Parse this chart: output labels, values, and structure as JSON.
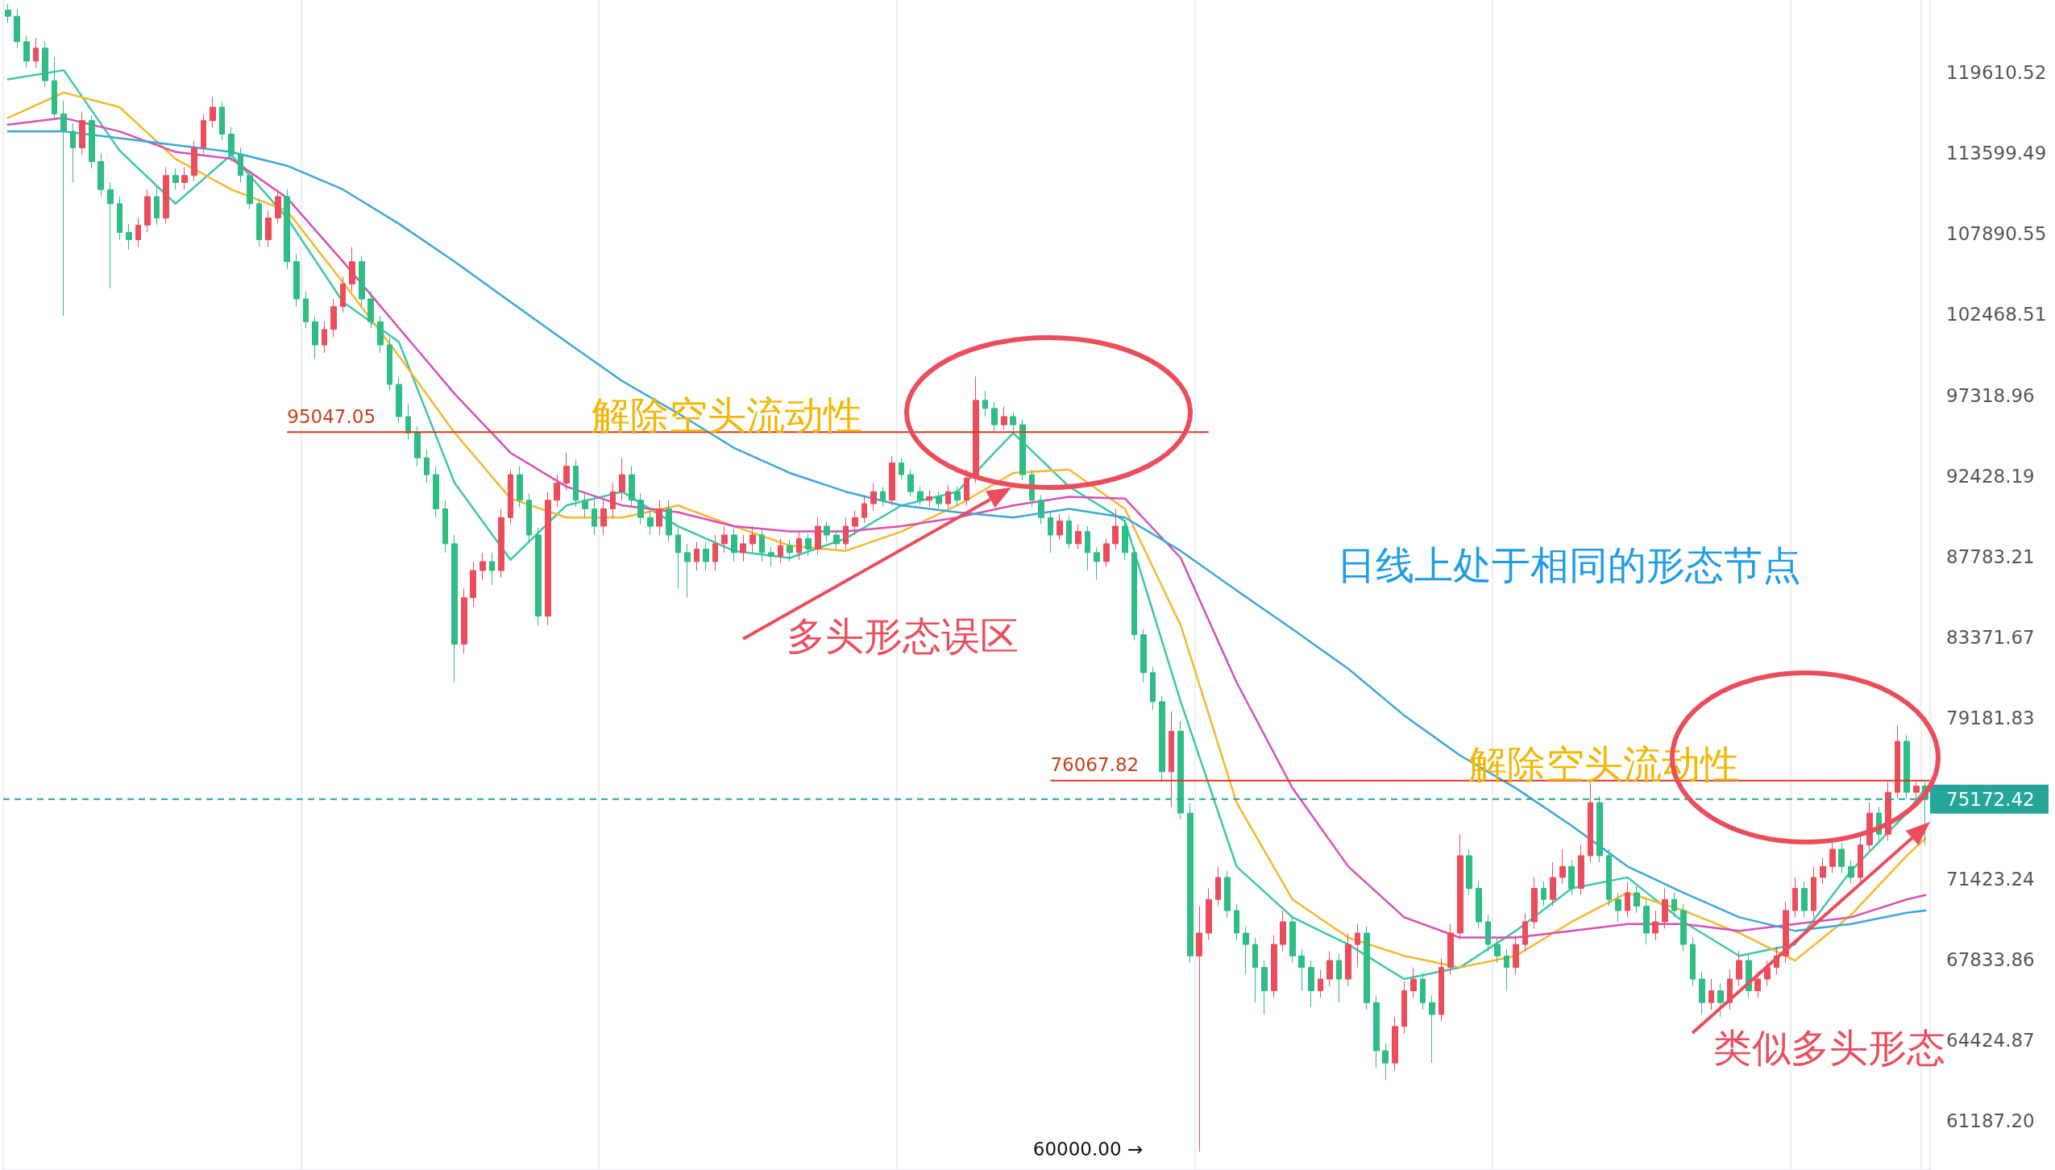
{
  "chart_data": {
    "type": "candlestick",
    "categories": [
      null,
      null,
      null,
      null,
      null,
      null,
      null,
      null,
      null,
      null,
      null,
      null,
      null,
      null,
      null,
      null,
      null,
      null,
      null,
      null,
      null,
      null,
      null,
      null,
      null,
      null,
      null,
      null,
      null,
      null,
      null,
      null,
      null,
      null,
      null,
      null,
      null,
      null,
      null,
      null,
      null,
      null,
      null,
      null,
      null,
      null,
      null,
      null,
      null,
      null,
      null,
      null,
      null,
      null,
      null,
      null,
      null,
      null,
      null,
      null,
      null,
      null,
      null,
      null,
      null,
      null,
      null,
      null,
      null,
      null,
      null,
      null,
      null,
      null,
      null,
      null,
      null,
      null,
      null,
      null,
      null,
      null,
      null,
      null,
      null,
      null,
      null,
      null,
      null,
      null,
      null,
      null,
      null,
      null,
      null,
      null,
      null,
      null,
      null,
      null,
      null,
      null,
      null,
      null,
      null,
      null,
      null,
      null,
      null,
      null,
      null,
      null,
      null,
      null,
      null,
      null,
      null,
      null,
      null,
      null,
      null,
      null,
      null,
      null,
      null,
      null,
      null,
      null,
      null,
      null,
      null,
      null,
      null,
      null,
      null,
      null,
      null,
      null,
      null,
      null,
      null,
      null,
      null,
      null,
      null,
      null,
      null,
      null,
      null,
      null,
      null,
      null,
      null,
      null,
      null,
      null,
      null,
      null,
      null,
      null,
      null,
      null,
      null,
      null,
      null,
      null,
      null,
      null,
      null,
      null,
      null,
      null,
      null,
      null,
      null,
      null,
      null,
      null,
      null,
      null,
      null,
      null,
      null,
      null,
      null,
      null,
      null,
      null,
      null,
      null,
      null,
      null,
      null,
      null,
      null,
      null,
      null,
      null,
      null,
      null,
      null,
      null,
      null,
      null,
      null,
      null,
      null
    ],
    "ohlc": [
      [
        124500,
        125000,
        123500,
        124000
      ],
      [
        124000,
        124600,
        121500,
        122000
      ],
      [
        122000,
        122500,
        120000,
        120500
      ],
      [
        120500,
        122300,
        120000,
        121500
      ],
      [
        121500,
        122000,
        118500,
        119000
      ],
      [
        119000,
        120800,
        116000,
        116500
      ],
      [
        116500,
        117500,
        102400,
        115200
      ],
      [
        115200,
        115800,
        111500,
        114000
      ],
      [
        114000,
        116600,
        113500,
        116000
      ],
      [
        116000,
        116400,
        112500,
        113000
      ],
      [
        113000,
        113600,
        110500,
        111000
      ],
      [
        111000,
        111500,
        104200,
        110000
      ],
      [
        110000,
        110500,
        107500,
        108000
      ],
      [
        108000,
        108600,
        106800,
        107500
      ],
      [
        107500,
        109000,
        107000,
        108500
      ],
      [
        108500,
        111000,
        108000,
        110500
      ],
      [
        110500,
        111200,
        108500,
        109000
      ],
      [
        109000,
        112600,
        108600,
        112000
      ],
      [
        112000,
        112500,
        111000,
        111500
      ],
      [
        111500,
        112600,
        111000,
        112000
      ],
      [
        112000,
        114500,
        111600,
        114000
      ],
      [
        114000,
        116500,
        113600,
        116000
      ],
      [
        116000,
        117800,
        115500,
        117000
      ],
      [
        117000,
        117400,
        114600,
        115000
      ],
      [
        115000,
        115500,
        113000,
        113500
      ],
      [
        113500,
        114000,
        111500,
        112000
      ],
      [
        112000,
        112400,
        109600,
        110000
      ],
      [
        110000,
        110300,
        107000,
        107500
      ],
      [
        107500,
        109500,
        107000,
        109000
      ],
      [
        109000,
        111000,
        108600,
        110500
      ],
      [
        110500,
        111000,
        105500,
        106000
      ],
      [
        106000,
        106500,
        103000,
        103500
      ],
      [
        103500,
        104000,
        101600,
        102000
      ],
      [
        102000,
        102400,
        99600,
        100500
      ],
      [
        100500,
        102000,
        100000,
        101500
      ],
      [
        101500,
        103500,
        101000,
        103000
      ],
      [
        103000,
        105000,
        102600,
        104500
      ],
      [
        104500,
        107000,
        104000,
        106000
      ],
      [
        106000,
        106400,
        103000,
        103500
      ],
      [
        103500,
        104000,
        101600,
        102000
      ],
      [
        102000,
        102400,
        100000,
        100500
      ],
      [
        100500,
        101000,
        97600,
        98000
      ],
      [
        98000,
        98400,
        95600,
        96000
      ],
      [
        96000,
        96800,
        94600,
        95000
      ],
      [
        95000,
        95400,
        93000,
        93500
      ],
      [
        93500,
        94000,
        92000,
        92500
      ],
      [
        92500,
        93000,
        90000,
        90500
      ],
      [
        90500,
        91000,
        88000,
        88500
      ],
      [
        88500,
        89000,
        81000,
        83000
      ],
      [
        83000,
        86000,
        82500,
        85500
      ],
      [
        85500,
        87500,
        85000,
        87000
      ],
      [
        87000,
        88000,
        86500,
        87500
      ],
      [
        87500,
        88000,
        86200,
        87000
      ],
      [
        87000,
        90500,
        86600,
        90000
      ],
      [
        90000,
        92800,
        89600,
        92500
      ],
      [
        92500,
        93000,
        90600,
        91000
      ],
      [
        91000,
        91400,
        88600,
        89000
      ],
      [
        89000,
        89400,
        84000,
        84500
      ],
      [
        84500,
        91500,
        84000,
        91000
      ],
      [
        91000,
        92500,
        90600,
        92000
      ],
      [
        92000,
        93800,
        91600,
        93000
      ],
      [
        93000,
        93400,
        90600,
        91000
      ],
      [
        91000,
        91400,
        90000,
        90500
      ],
      [
        90500,
        91000,
        89000,
        89500
      ],
      [
        89500,
        91000,
        89000,
        90500
      ],
      [
        90500,
        92000,
        90000,
        91500
      ],
      [
        91500,
        93500,
        91000,
        92500
      ],
      [
        92500,
        93000,
        90600,
        91000
      ],
      [
        91000,
        91400,
        89600,
        90000
      ],
      [
        90000,
        90400,
        89000,
        89500
      ],
      [
        89500,
        91000,
        89000,
        90500
      ],
      [
        90500,
        91000,
        88600,
        89000
      ],
      [
        89000,
        89400,
        86000,
        88000
      ],
      [
        88000,
        88500,
        85500,
        87500
      ],
      [
        87500,
        88600,
        87000,
        88200
      ],
      [
        88200,
        88600,
        87000,
        87500
      ],
      [
        87500,
        89000,
        87000,
        88500
      ],
      [
        88500,
        89500,
        88000,
        89000
      ],
      [
        89000,
        89400,
        87500,
        88000
      ],
      [
        88000,
        89000,
        87500,
        88500
      ],
      [
        88500,
        89500,
        88000,
        89000
      ],
      [
        89000,
        89300,
        87500,
        88000
      ],
      [
        88000,
        88300,
        87200,
        87800
      ],
      [
        87800,
        88800,
        87400,
        88400
      ],
      [
        88400,
        88700,
        87500,
        88000
      ],
      [
        88000,
        89200,
        87600,
        88800
      ],
      [
        88800,
        89100,
        87800,
        88200
      ],
      [
        88200,
        90000,
        87900,
        89500
      ],
      [
        89500,
        89800,
        88600,
        89000
      ],
      [
        89000,
        89300,
        88200,
        88500
      ],
      [
        88500,
        90000,
        88200,
        89500
      ],
      [
        89500,
        90400,
        89000,
        90000
      ],
      [
        90000,
        91200,
        89700,
        90800
      ],
      [
        90800,
        92000,
        90400,
        91500
      ],
      [
        91500,
        91800,
        90600,
        91000
      ],
      [
        91000,
        93600,
        90700,
        93200
      ],
      [
        93200,
        93500,
        92200,
        92500
      ],
      [
        92500,
        92800,
        91200,
        91500
      ],
      [
        91500,
        91800,
        90700,
        91000
      ],
      [
        91000,
        91600,
        90600,
        91200
      ],
      [
        91200,
        91500,
        90500,
        90800
      ],
      [
        90800,
        91900,
        90500,
        91500
      ],
      [
        91500,
        91800,
        90700,
        91000
      ],
      [
        91000,
        92800,
        90700,
        92300
      ],
      [
        92300,
        98500,
        92000,
        97000
      ],
      [
        97000,
        97600,
        96000,
        96500
      ],
      [
        96500,
        96900,
        95100,
        95500
      ],
      [
        95500,
        96600,
        95200,
        96000
      ],
      [
        96000,
        96300,
        95100,
        95500
      ],
      [
        95500,
        95800,
        92200,
        92500
      ],
      [
        92500,
        92800,
        90600,
        91000
      ],
      [
        91000,
        91300,
        89600,
        90000
      ],
      [
        90000,
        90300,
        88000,
        89000
      ],
      [
        89000,
        90200,
        88700,
        89800
      ],
      [
        89800,
        90100,
        88200,
        88500
      ],
      [
        88500,
        89600,
        88200,
        89200
      ],
      [
        89200,
        89500,
        87000,
        88000
      ],
      [
        88000,
        88300,
        86500,
        87500
      ],
      [
        87500,
        88800,
        87200,
        88500
      ],
      [
        88500,
        90500,
        88200,
        89500
      ],
      [
        89500,
        89800,
        87600,
        88000
      ],
      [
        88000,
        88300,
        83200,
        83500
      ],
      [
        83500,
        83800,
        81000,
        81500
      ],
      [
        81500,
        81800,
        79600,
        80000
      ],
      [
        80000,
        80300,
        76000,
        76500
      ],
      [
        76500,
        79500,
        74800,
        78500
      ],
      [
        78500,
        79000,
        74200,
        74500
      ],
      [
        74500,
        75000,
        67700,
        68000
      ],
      [
        68000,
        70200,
        60000,
        69000
      ],
      [
        69000,
        71000,
        68700,
        70500
      ],
      [
        70500,
        72000,
        70200,
        71500
      ],
      [
        71500,
        71800,
        69700,
        70000
      ],
      [
        70000,
        70300,
        68700,
        69000
      ],
      [
        69000,
        69300,
        67200,
        68500
      ],
      [
        68500,
        68800,
        66000,
        67500
      ],
      [
        67500,
        67800,
        65500,
        66500
      ],
      [
        66500,
        68900,
        66200,
        68500
      ],
      [
        68500,
        70000,
        68200,
        69500
      ],
      [
        69500,
        69800,
        67700,
        68000
      ],
      [
        68000,
        68300,
        66500,
        67500
      ],
      [
        67500,
        67800,
        65800,
        66500
      ],
      [
        66500,
        67400,
        66200,
        67000
      ],
      [
        67000,
        68200,
        66700,
        67800
      ],
      [
        67800,
        68100,
        66000,
        67000
      ],
      [
        67000,
        69000,
        66700,
        68500
      ],
      [
        68500,
        69400,
        67500,
        69000
      ],
      [
        69000,
        69300,
        65700,
        66000
      ],
      [
        66000,
        66300,
        63300,
        64000
      ],
      [
        64000,
        64300,
        62800,
        63500
      ],
      [
        63500,
        65400,
        63200,
        65000
      ],
      [
        65000,
        66900,
        64700,
        66500
      ],
      [
        66500,
        67500,
        66200,
        67000
      ],
      [
        67000,
        67300,
        65700,
        66000
      ],
      [
        66000,
        66300,
        63500,
        65500
      ],
      [
        65500,
        67900,
        65200,
        67500
      ],
      [
        67500,
        69400,
        67200,
        69000
      ],
      [
        69000,
        73500,
        68700,
        72500
      ],
      [
        72500,
        72800,
        70700,
        71000
      ],
      [
        71000,
        71300,
        69200,
        69500
      ],
      [
        69500,
        69800,
        68200,
        68500
      ],
      [
        68500,
        68800,
        67700,
        68000
      ],
      [
        68000,
        68300,
        66500,
        67500
      ],
      [
        67500,
        68900,
        67200,
        68500
      ],
      [
        68500,
        69900,
        68200,
        69500
      ],
      [
        69500,
        71500,
        69200,
        71000
      ],
      [
        71000,
        71300,
        70200,
        70500
      ],
      [
        70500,
        72200,
        70200,
        71500
      ],
      [
        71500,
        72800,
        71200,
        72000
      ],
      [
        72000,
        72300,
        70700,
        71000
      ],
      [
        71000,
        73000,
        70700,
        72500
      ],
      [
        72500,
        76000,
        72200,
        75000
      ],
      [
        75000,
        75300,
        72200,
        72500
      ],
      [
        72500,
        72800,
        70200,
        70500
      ],
      [
        70500,
        70800,
        69500,
        70000
      ],
      [
        70000,
        71300,
        69700,
        70800
      ],
      [
        70800,
        71100,
        69900,
        70200
      ],
      [
        70200,
        70500,
        68500,
        69000
      ],
      [
        69000,
        70000,
        68700,
        69500
      ],
      [
        69500,
        71000,
        69200,
        70500
      ],
      [
        70500,
        70800,
        69700,
        70000
      ],
      [
        70000,
        70300,
        68200,
        68500
      ],
      [
        68500,
        68800,
        66700,
        67000
      ],
      [
        67000,
        67300,
        65500,
        66000
      ],
      [
        66000,
        67000,
        65700,
        66500
      ],
      [
        66500,
        66800,
        65400,
        66000
      ],
      [
        66000,
        67400,
        65700,
        67000
      ],
      [
        67000,
        68200,
        66700,
        67800
      ],
      [
        67800,
        68100,
        66200,
        66500
      ],
      [
        66500,
        67300,
        66200,
        67000
      ],
      [
        67000,
        67800,
        66700,
        67500
      ],
      [
        67500,
        68400,
        67200,
        68000
      ],
      [
        68000,
        70400,
        67700,
        70000
      ],
      [
        70000,
        71500,
        69700,
        71000
      ],
      [
        71000,
        71300,
        69700,
        70000
      ],
      [
        70000,
        72000,
        69700,
        71500
      ],
      [
        71500,
        72400,
        71200,
        72000
      ],
      [
        72000,
        73200,
        71700,
        72800
      ],
      [
        72800,
        73100,
        71700,
        72000
      ],
      [
        72000,
        72300,
        71200,
        71500
      ],
      [
        71500,
        73400,
        71200,
        73000
      ],
      [
        73000,
        75000,
        72700,
        74500
      ],
      [
        74500,
        74800,
        73200,
        73500
      ],
      [
        73500,
        76000,
        73200,
        75500
      ],
      [
        75500,
        78800,
        75200,
        78000
      ],
      [
        78000,
        78300,
        75200,
        75500
      ],
      [
        75500,
        76000,
        75200,
        75800
      ],
      [
        75800,
        76000,
        73000,
        75172.42
      ]
    ],
    "colors": [
      "#2ebd85",
      "#2ebd85",
      "#2ebd85",
      "#eb4d5c",
      "#2ebd85",
      "#2ebd85",
      "#2ebd85",
      "#2ebd85",
      "#eb4d5c",
      "#2ebd85",
      "#2ebd85",
      "#2ebd85",
      "#2ebd85",
      "#2ebd85",
      "#eb4d5c",
      "#eb4d5c",
      "#2ebd85",
      "#eb4d5c",
      "#2ebd85",
      "#eb4d5c",
      "#eb4d5c",
      "#eb4d5c",
      "#eb4d5c",
      "#2ebd85",
      "#2ebd85",
      "#2ebd85",
      "#2ebd85",
      "#2ebd85",
      "#eb4d5c",
      "#eb4d5c",
      "#2ebd85",
      "#2ebd85",
      "#2ebd85",
      "#2ebd85",
      "#eb4d5c",
      "#eb4d5c",
      "#eb4d5c",
      "#eb4d5c",
      "#2ebd85",
      "#2ebd85",
      "#2ebd85",
      "#2ebd85",
      "#2ebd85",
      "#2ebd85",
      "#2ebd85",
      "#2ebd85",
      "#2ebd85",
      "#2ebd85",
      "#2ebd85",
      "#eb4d5c",
      "#eb4d5c",
      "#eb4d5c",
      "#2ebd85",
      "#eb4d5c",
      "#eb4d5c",
      "#2ebd85",
      "#2ebd85",
      "#2ebd85",
      "#eb4d5c",
      "#eb4d5c",
      "#eb4d5c",
      "#2ebd85",
      "#2ebd85",
      "#2ebd85",
      "#eb4d5c",
      "#eb4d5c",
      "#eb4d5c",
      "#2ebd85",
      "#2ebd85",
      "#2ebd85",
      "#eb4d5c",
      "#2ebd85",
      "#2ebd85",
      "#2ebd85",
      "#eb4d5c",
      "#2ebd85",
      "#eb4d5c",
      "#eb4d5c",
      "#2ebd85",
      "#eb4d5c",
      "#eb4d5c",
      "#2ebd85",
      "#2ebd85",
      "#eb4d5c",
      "#2ebd85",
      "#eb4d5c",
      "#2ebd85",
      "#eb4d5c",
      "#2ebd85",
      "#2ebd85",
      "#eb4d5c",
      "#eb4d5c",
      "#eb4d5c",
      "#eb4d5c",
      "#2ebd85",
      "#eb4d5c",
      "#2ebd85",
      "#2ebd85",
      "#2ebd85",
      "#eb4d5c",
      "#2ebd85",
      "#eb4d5c",
      "#2ebd85",
      "#eb4d5c",
      "#eb4d5c",
      "#2ebd85",
      "#2ebd85",
      "#eb4d5c",
      "#2ebd85",
      "#2ebd85",
      "#2ebd85",
      "#2ebd85",
      "#2ebd85",
      "#eb4d5c",
      "#2ebd85",
      "#eb4d5c",
      "#2ebd85",
      "#2ebd85",
      "#eb4d5c",
      "#eb4d5c",
      "#2ebd85",
      "#2ebd85",
      "#2ebd85",
      "#2ebd85",
      "#2ebd85",
      "#eb4d5c",
      "#2ebd85",
      "#2ebd85",
      "#eb4d5c",
      "#eb4d5c",
      "#eb4d5c",
      "#2ebd85",
      "#2ebd85",
      "#2ebd85",
      "#2ebd85",
      "#2ebd85",
      "#eb4d5c",
      "#eb4d5c",
      "#2ebd85",
      "#2ebd85",
      "#2ebd85",
      "#eb4d5c",
      "#eb4d5c",
      "#2ebd85",
      "#eb4d5c",
      "#eb4d5c",
      "#2ebd85",
      "#2ebd85",
      "#2ebd85",
      "#eb4d5c",
      "#eb4d5c",
      "#eb4d5c",
      "#2ebd85",
      "#2ebd85",
      "#eb4d5c",
      "#eb4d5c",
      "#eb4d5c",
      "#2ebd85",
      "#2ebd85",
      "#2ebd85",
      "#2ebd85",
      "#2ebd85",
      "#eb4d5c",
      "#eb4d5c",
      "#eb4d5c",
      "#2ebd85",
      "#eb4d5c",
      "#eb4d5c",
      "#2ebd85",
      "#eb4d5c",
      "#eb4d5c",
      "#2ebd85",
      "#2ebd85",
      "#2ebd85",
      "#eb4d5c",
      "#2ebd85",
      "#2ebd85",
      "#eb4d5c",
      "#eb4d5c",
      "#2ebd85",
      "#2ebd85",
      "#2ebd85",
      "#2ebd85",
      "#eb4d5c",
      "#2ebd85",
      "#eb4d5c",
      "#eb4d5c",
      "#2ebd85",
      "#eb4d5c",
      "#eb4d5c",
      "#eb4d5c",
      "#eb4d5c",
      "#eb4d5c",
      "#2ebd85",
      "#eb4d5c",
      "#eb4d5c",
      "#eb4d5c",
      "#2ebd85",
      "#2ebd85",
      "#eb4d5c",
      "#eb4d5c",
      "#2ebd85",
      "#eb4d5c",
      "#eb4d5c",
      "#2ebd85",
      "#eb4d5c",
      "#2ebd85"
    ],
    "series": [
      {
        "type": "line",
        "color": "#3cc8a8",
        "values": [
          119100,
          null,
          null,
          null,
          null,
          null,
          119800,
          null,
          null,
          null,
          null,
          null,
          113800,
          null,
          null,
          null,
          null,
          null,
          110000,
          null,
          null,
          null,
          null,
          null,
          113500,
          null,
          null,
          null,
          null,
          null,
          109000,
          null,
          null,
          null,
          null,
          null,
          103300,
          null,
          null,
          null,
          null,
          null,
          100700,
          null,
          null,
          null,
          null,
          null,
          92000,
          null,
          null,
          null,
          null,
          null,
          87600,
          null,
          null,
          null,
          null,
          null,
          90700,
          null,
          null,
          null,
          null,
          null,
          91500,
          null,
          null,
          null,
          null,
          null,
          89500,
          null,
          null,
          null,
          null,
          null,
          88100,
          null,
          null,
          null,
          null,
          null,
          87700,
          null,
          null,
          null,
          null,
          null,
          88800,
          null,
          null,
          null,
          null,
          null,
          90700,
          null,
          null,
          null,
          null,
          null,
          91500,
          null,
          null,
          null,
          null,
          null,
          95000,
          null,
          null,
          null,
          null,
          null,
          91800,
          null,
          null,
          null,
          null,
          null,
          89800,
          null,
          null,
          null,
          null,
          null,
          80000,
          null,
          null,
          null,
          null,
          null,
          72000,
          null,
          null,
          null,
          null,
          null,
          69700,
          null,
          null,
          null,
          null,
          null,
          68500,
          null,
          null,
          null,
          null,
          null,
          67000,
          null,
          null,
          null,
          null,
          null,
          67500,
          null,
          null,
          null,
          null,
          null,
          69100,
          null,
          null,
          null,
          null,
          null,
          71000,
          null,
          null,
          null,
          null,
          null,
          71500,
          null,
          null,
          null,
          null,
          null,
          69500,
          null,
          null,
          null,
          null,
          null,
          68000,
          null,
          null,
          null,
          null,
          null,
          68500,
          null,
          null,
          null,
          null,
          null,
          71800,
          null,
          null,
          null,
          null,
          null,
          74500,
          null,
          75700
        ]
      },
      {
        "type": "line",
        "color": "#f5b82e",
        "values": [
          116200,
          null,
          null,
          null,
          null,
          null,
          118100,
          null,
          null,
          null,
          null,
          null,
          117000,
          null,
          null,
          null,
          null,
          null,
          113200,
          null,
          null,
          null,
          null,
          null,
          111000,
          null,
          null,
          null,
          null,
          null,
          109500,
          null,
          null,
          null,
          null,
          null,
          104600,
          null,
          null,
          null,
          null,
          null,
          99800,
          null,
          null,
          null,
          null,
          null,
          95000,
          null,
          null,
          null,
          null,
          null,
          91100,
          null,
          null,
          null,
          null,
          null,
          90000,
          null,
          null,
          null,
          null,
          null,
          90000,
          null,
          null,
          null,
          null,
          null,
          90700,
          null,
          null,
          null,
          null,
          null,
          89500,
          null,
          null,
          null,
          null,
          null,
          88400,
          null,
          null,
          null,
          null,
          null,
          88100,
          null,
          null,
          null,
          null,
          null,
          89200,
          null,
          null,
          null,
          null,
          null,
          90700,
          null,
          null,
          null,
          null,
          null,
          92600,
          null,
          null,
          null,
          null,
          null,
          92800,
          null,
          null,
          null,
          null,
          null,
          90500,
          null,
          null,
          null,
          null,
          null,
          84000,
          null,
          null,
          null,
          null,
          null,
          75000,
          null,
          null,
          null,
          null,
          null,
          70500,
          null,
          null,
          null,
          null,
          null,
          68800,
          null,
          null,
          null,
          null,
          null,
          68000,
          null,
          null,
          null,
          null,
          null,
          67500,
          null,
          null,
          null,
          null,
          null,
          68000,
          null,
          null,
          null,
          null,
          null,
          69500,
          null,
          null,
          null,
          null,
          null,
          70800,
          null,
          null,
          null,
          null,
          null,
          70000,
          null,
          null,
          null,
          null,
          null,
          69000,
          null,
          null,
          null,
          null,
          null,
          67800,
          null,
          null,
          null,
          null,
          null,
          69800,
          null,
          null,
          null,
          null,
          null,
          72500,
          null,
          73300
        ]
      },
      {
        "type": "line",
        "color": "#d94fb5",
        "values": [
          115700,
          null,
          null,
          null,
          null,
          null,
          116200,
          null,
          null,
          null,
          null,
          null,
          115200,
          null,
          null,
          null,
          null,
          null,
          113700,
          null,
          null,
          null,
          null,
          null,
          113200,
          null,
          null,
          null,
          null,
          null,
          110400,
          null,
          null,
          null,
          null,
          null,
          106000,
          null,
          null,
          null,
          null,
          null,
          101600,
          null,
          null,
          null,
          null,
          null,
          97400,
          null,
          null,
          null,
          null,
          null,
          93800,
          null,
          null,
          null,
          null,
          null,
          91800,
          null,
          null,
          null,
          null,
          null,
          90700,
          null,
          null,
          null,
          null,
          null,
          90300,
          null,
          null,
          null,
          null,
          null,
          89500,
          null,
          null,
          null,
          null,
          null,
          89200,
          null,
          null,
          null,
          null,
          null,
          89200,
          null,
          null,
          null,
          null,
          null,
          89500,
          null,
          null,
          null,
          null,
          null,
          90000,
          null,
          null,
          null,
          null,
          null,
          90700,
          null,
          null,
          null,
          null,
          null,
          91200,
          null,
          null,
          null,
          null,
          null,
          91100,
          null,
          null,
          null,
          null,
          null,
          87700,
          null,
          null,
          null,
          null,
          null,
          81000,
          null,
          null,
          null,
          null,
          null,
          75700,
          null,
          null,
          null,
          null,
          null,
          72000,
          null,
          null,
          null,
          null,
          null,
          69700,
          null,
          null,
          null,
          null,
          null,
          68800,
          null,
          null,
          null,
          null,
          null,
          68800,
          null,
          null,
          null,
          null,
          null,
          69100,
          null,
          null,
          null,
          null,
          null,
          69400,
          null,
          null,
          null,
          null,
          null,
          69400,
          null,
          null,
          null,
          null,
          null,
          69100,
          null,
          null,
          null,
          null,
          null,
          69400,
          null,
          null,
          null,
          null,
          null,
          69700,
          null,
          null,
          null,
          null,
          null,
          70500,
          null,
          70700
        ]
      },
      {
        "type": "line",
        "color": "#3aa8d8",
        "values": [
          115200,
          null,
          null,
          null,
          null,
          null,
          115200,
          null,
          null,
          null,
          null,
          null,
          114700,
          null,
          null,
          null,
          null,
          null,
          114200,
          null,
          null,
          null,
          null,
          null,
          113700,
          null,
          null,
          null,
          null,
          null,
          112700,
          null,
          null,
          null,
          null,
          null,
          111000,
          null,
          null,
          null,
          null,
          null,
          108600,
          null,
          null,
          null,
          null,
          null,
          106000,
          null,
          null,
          null,
          null,
          null,
          103300,
          null,
          null,
          null,
          null,
          null,
          100700,
          null,
          null,
          null,
          null,
          null,
          98200,
          null,
          null,
          null,
          null,
          null,
          96200,
          null,
          null,
          null,
          null,
          null,
          94100,
          null,
          null,
          null,
          null,
          null,
          92600,
          null,
          null,
          null,
          null,
          null,
          91500,
          null,
          null,
          null,
          null,
          null,
          90700,
          null,
          null,
          null,
          null,
          null,
          90300,
          null,
          null,
          null,
          null,
          null,
          90000,
          null,
          null,
          null,
          null,
          null,
          90500,
          null,
          null,
          null,
          null,
          null,
          90000,
          null,
          null,
          null,
          null,
          null,
          88100,
          null,
          null,
          null,
          null,
          null,
          85900,
          null,
          null,
          null,
          null,
          null,
          83800,
          null,
          null,
          null,
          null,
          null,
          81700,
          null,
          null,
          null,
          null,
          null,
          79300,
          null,
          null,
          null,
          null,
          null,
          77300,
          null,
          null,
          null,
          null,
          null,
          75700,
          null,
          null,
          null,
          null,
          null,
          73900,
          null,
          null,
          null,
          null,
          null,
          72000,
          null,
          null,
          null,
          null,
          null,
          70800,
          null,
          null,
          null,
          null,
          null,
          69700,
          null,
          null,
          null,
          null,
          null,
          69100,
          null,
          null,
          null,
          null,
          null,
          69400,
          null,
          null,
          null,
          null,
          null,
          69900,
          null,
          70000
        ]
      }
    ],
    "ylim": [
      59300,
      125300
    ],
    "yticks": [
      119610.52,
      113599.49,
      107890.55,
      102468.51,
      97318.96,
      92428.19,
      87783.21,
      83371.67,
      79181.83,
      71423.24,
      67833.86,
      64424.87,
      {
        "value": 61187.2,
        "label": "61187.20"
      }
    ],
    "log": true,
    "grid": "x",
    "tick_labels": "y",
    "marker": "none",
    "line_style": "solid",
    "ref_lines": [
      {
        "axis": "y",
        "value": 95047.05,
        "label": "95047.05",
        "color": "#d9381e",
        "line_style": "solid"
      },
      {
        "axis": "y",
        "value": 76067.82,
        "label": "76067.82",
        "color": "#d9381e",
        "line_style": "solid"
      },
      {
        "axis": "y",
        "value": 75172.42,
        "label": "75172.42",
        "color": "#26a69a",
        "line_style": "dashed"
      }
    ],
    "annotations": [
      "解除空头流动性",
      "多头形态误区",
      "日线上处于相同的形态节点",
      "解除空头流动性",
      "类似多头形态",
      "60000.00 →"
    ]
  }
}
